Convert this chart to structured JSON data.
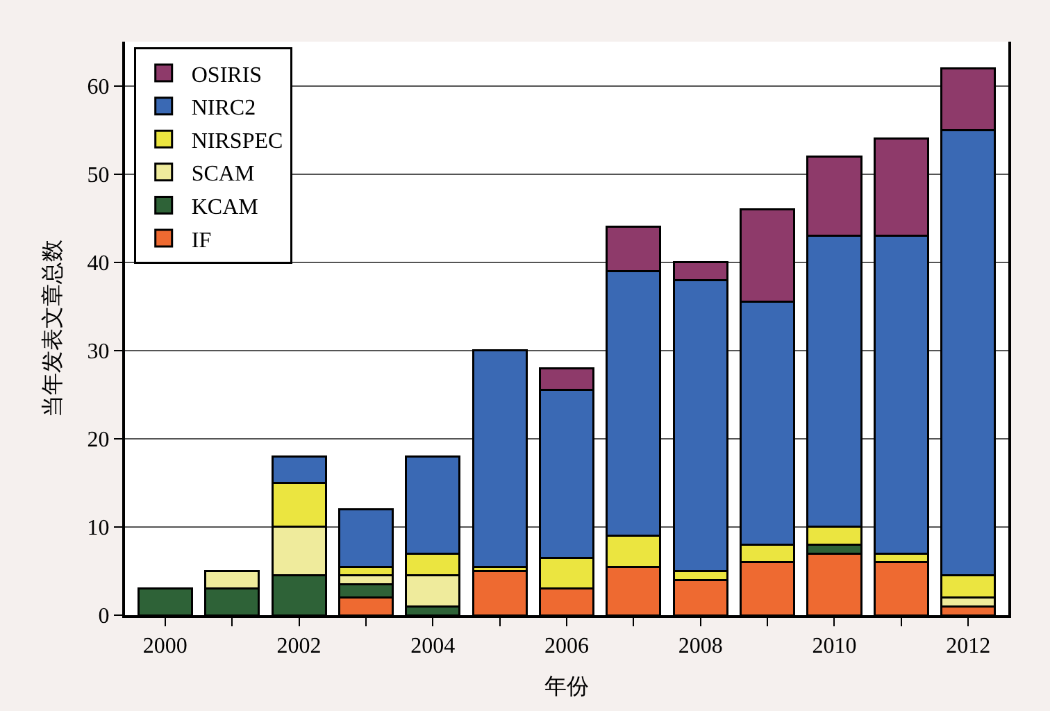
{
  "chart_data": {
    "type": "bar",
    "stacked": true,
    "xlabel": "年份",
    "ylabel": "当年发表文章总数",
    "categories": [
      "2000",
      null,
      "2002",
      null,
      "2004",
      null,
      "2006",
      null,
      "2008",
      null,
      "2010",
      null,
      "2012"
    ],
    "series": [
      {
        "name": "IF",
        "color": "#ee6a31",
        "values": [
          null,
          null,
          null,
          2,
          null,
          5,
          3,
          5.5,
          4,
          6,
          7,
          6,
          1
        ]
      },
      {
        "name": "KCAM",
        "color": "#2e6237",
        "values": [
          3,
          3,
          4.5,
          1.5,
          1,
          null,
          null,
          null,
          null,
          null,
          1,
          null,
          null
        ]
      },
      {
        "name": "SCAM",
        "color": "#efeb9c",
        "values": [
          null,
          2,
          5.5,
          1,
          3.5,
          null,
          null,
          null,
          null,
          null,
          null,
          null,
          1
        ]
      },
      {
        "name": "NIRSPEC",
        "color": "#ebe540",
        "values": [
          null,
          null,
          5,
          1,
          2.5,
          0.5,
          3.5,
          3.5,
          1,
          2,
          2,
          1,
          2.5
        ]
      },
      {
        "name": "NIRC2",
        "color": "#3a69b4",
        "values": [
          null,
          null,
          3,
          6.5,
          11,
          24.5,
          19,
          30,
          33,
          27.5,
          33,
          36,
          50.5
        ]
      },
      {
        "name": "OSIRIS",
        "color": "#8e3a6a",
        "values": [
          null,
          null,
          null,
          null,
          null,
          null,
          2.5,
          5,
          2,
          10.5,
          9,
          11,
          7
        ]
      }
    ],
    "ylim": [
      0,
      65
    ],
    "yticks": [
      0,
      10,
      20,
      30,
      40,
      50,
      60
    ],
    "grid": "y",
    "legend": "top left"
  }
}
